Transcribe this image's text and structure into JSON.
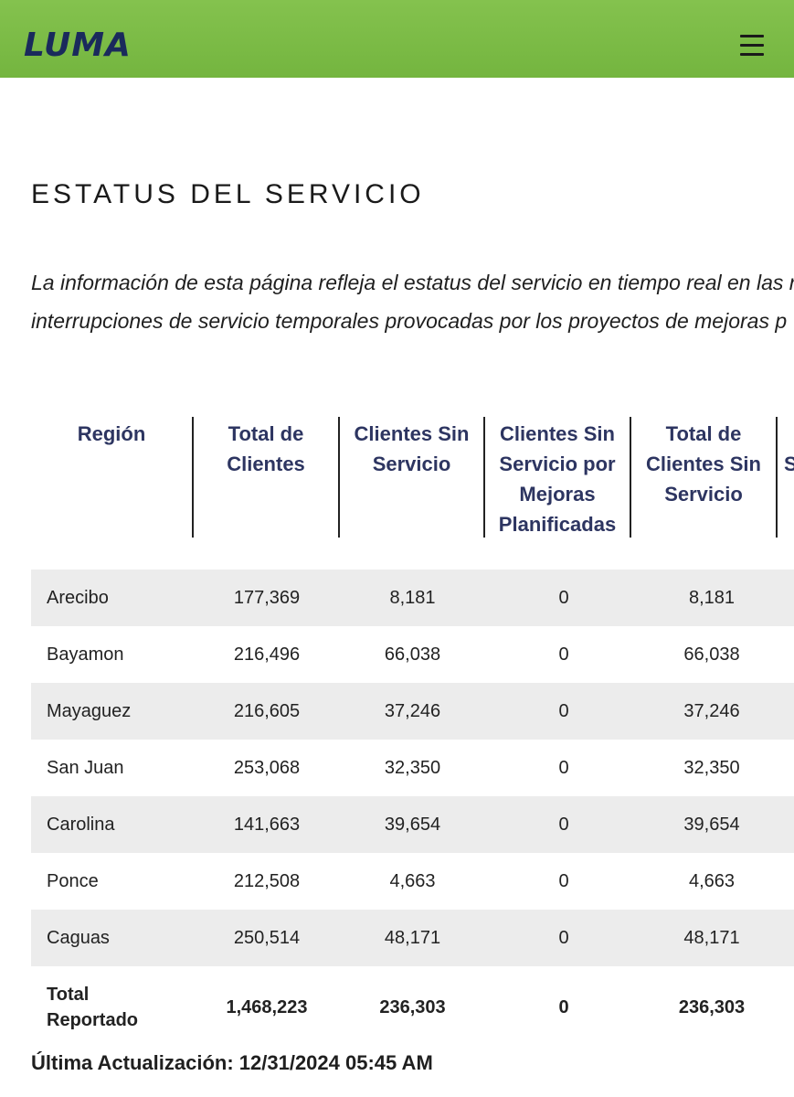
{
  "header": {
    "logo_text": "LUMA",
    "brand_color": "#7dbb46",
    "menu_icon": "hamburger-menu-icon"
  },
  "page": {
    "title": "ESTATUS DEL SERVICIO",
    "intro_line1": "La información de esta página refleja el estatus del servicio en tiempo real en las r",
    "intro_line2": "interrupciones de servicio temporales provocadas por los proyectos de mejoras p"
  },
  "table": {
    "headers": [
      [
        "Región"
      ],
      [
        "Total de",
        "Clientes"
      ],
      [
        "Clientes Sin",
        "Servicio"
      ],
      [
        "Clientes Sin",
        "Servicio por",
        "Mejoras",
        "Planificadas"
      ],
      [
        "Total de",
        "Clientes Sin",
        "Servicio"
      ],
      [
        "S"
      ]
    ],
    "rows": [
      {
        "region": "Arecibo",
        "total": "177,369",
        "sin_servicio": "8,181",
        "mejoras": "0",
        "total_sin": "8,181"
      },
      {
        "region": "Bayamon",
        "total": "216,496",
        "sin_servicio": "66,038",
        "mejoras": "0",
        "total_sin": "66,038"
      },
      {
        "region": "Mayaguez",
        "total": "216,605",
        "sin_servicio": "37,246",
        "mejoras": "0",
        "total_sin": "37,246"
      },
      {
        "region": "San Juan",
        "total": "253,068",
        "sin_servicio": "32,350",
        "mejoras": "0",
        "total_sin": "32,350"
      },
      {
        "region": "Carolina",
        "total": "141,663",
        "sin_servicio": "39,654",
        "mejoras": "0",
        "total_sin": "39,654"
      },
      {
        "region": "Ponce",
        "total": "212,508",
        "sin_servicio": "4,663",
        "mejoras": "0",
        "total_sin": "4,663"
      },
      {
        "region": "Caguas",
        "total": "250,514",
        "sin_servicio": "48,171",
        "mejoras": "0",
        "total_sin": "48,171"
      }
    ],
    "total_row": {
      "region_line1": "Total",
      "region_line2": "Reportado",
      "total": "1,468,223",
      "sin_servicio": "236,303",
      "mejoras": "0",
      "total_sin": "236,303"
    }
  },
  "footer": {
    "updated": "Última Actualización: 12/31/2024 05:45 AM"
  }
}
